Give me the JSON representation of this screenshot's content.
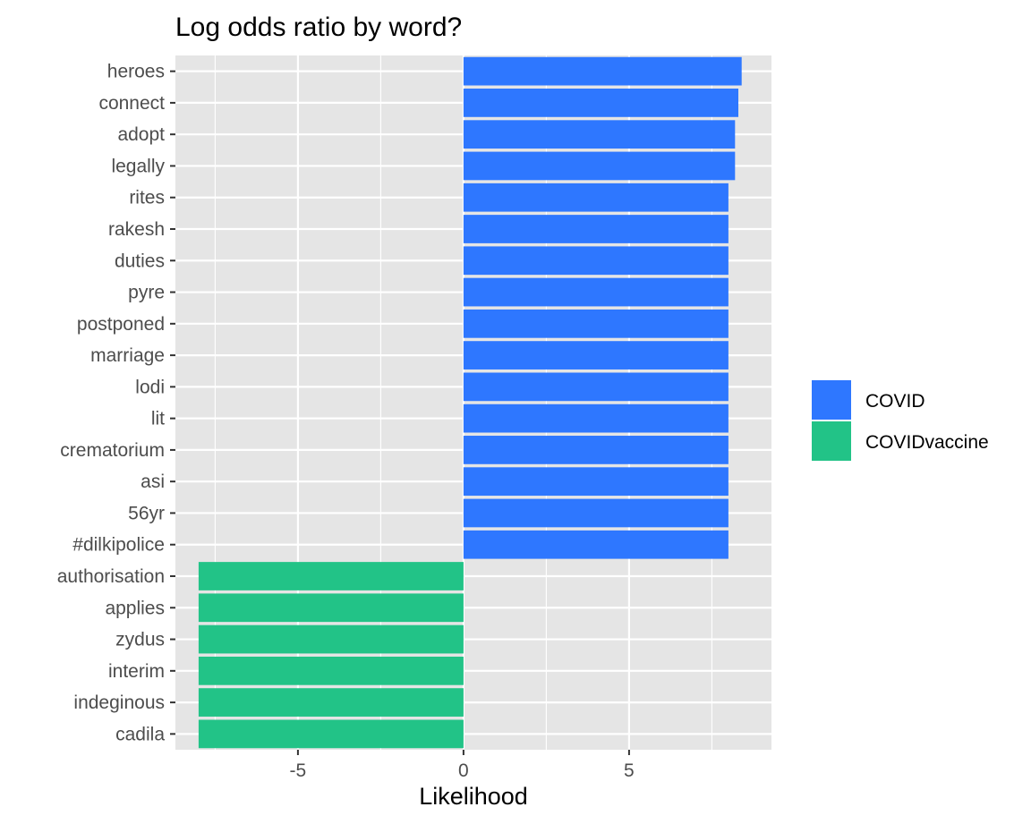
{
  "chart_data": {
    "type": "bar",
    "orientation": "horizontal",
    "title": "Log odds ratio by word?",
    "xlabel": "Likelihood",
    "ylabel": "",
    "xlim": [
      -8.7,
      9.3
    ],
    "x_ticks": [
      -5,
      0,
      5
    ],
    "x_tick_labels": [
      "-5",
      "0",
      "5"
    ],
    "grid": true,
    "legend": {
      "position": "right",
      "entries": [
        {
          "name": "COVID",
          "color": "#2E77FF"
        },
        {
          "name": "COVIDvaccine",
          "color": "#22C387"
        }
      ]
    },
    "categories": [
      "heroes",
      "connect",
      "adopt",
      "legally",
      "rites",
      "rakesh",
      "duties",
      "pyre",
      "postponed",
      "marriage",
      "lodi",
      "lit",
      "crematorium",
      "asi",
      "56yr",
      "#dilkipolice",
      "authorisation",
      "applies",
      "zydus",
      "interim",
      "indeginous",
      "cadila"
    ],
    "values": [
      8.4,
      8.3,
      8.2,
      8.2,
      8.0,
      8.0,
      8.0,
      8.0,
      8.0,
      8.0,
      8.0,
      8.0,
      8.0,
      8.0,
      8.0,
      8.0,
      -8.0,
      -8.0,
      -8.0,
      -8.0,
      -8.0,
      -8.0
    ],
    "groups": [
      "COVID",
      "COVID",
      "COVID",
      "COVID",
      "COVID",
      "COVID",
      "COVID",
      "COVID",
      "COVID",
      "COVID",
      "COVID",
      "COVID",
      "COVID",
      "COVID",
      "COVID",
      "COVID",
      "COVIDvaccine",
      "COVIDvaccine",
      "COVIDvaccine",
      "COVIDvaccine",
      "COVIDvaccine",
      "COVIDvaccine"
    ]
  },
  "colors": {
    "panel_bg": "#E5E5E5",
    "grid": "#FFFFFF",
    "text": "#4D4D4D",
    "title": "#000000"
  }
}
